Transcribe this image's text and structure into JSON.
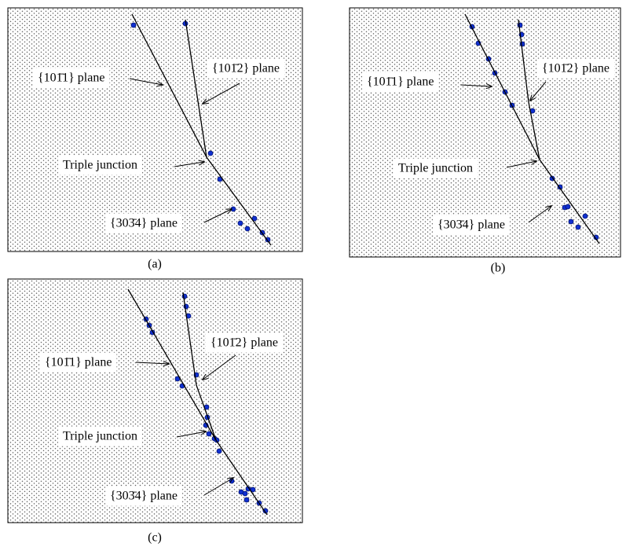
{
  "panels": [
    {
      "caption": "(a)",
      "labels": {
        "plane_1011": "{101̄1} plane",
        "plane_1012": "{101̄2} plane",
        "triple": "Triple junction",
        "plane_3034": "{303̄4} plane"
      }
    },
    {
      "caption": "(b)",
      "labels": {
        "plane_1011": "{101̄1} plane",
        "plane_1012": "{101̄2} plane",
        "triple": "Triple junction",
        "plane_3034": "{303̄4} plane"
      }
    },
    {
      "caption": "(c)",
      "labels": {
        "plane_1011": "{101̄1} plane",
        "plane_1012": "{101̄2} plane",
        "triple": "Triple junction",
        "plane_3034": "{303̄4} plane"
      }
    }
  ]
}
